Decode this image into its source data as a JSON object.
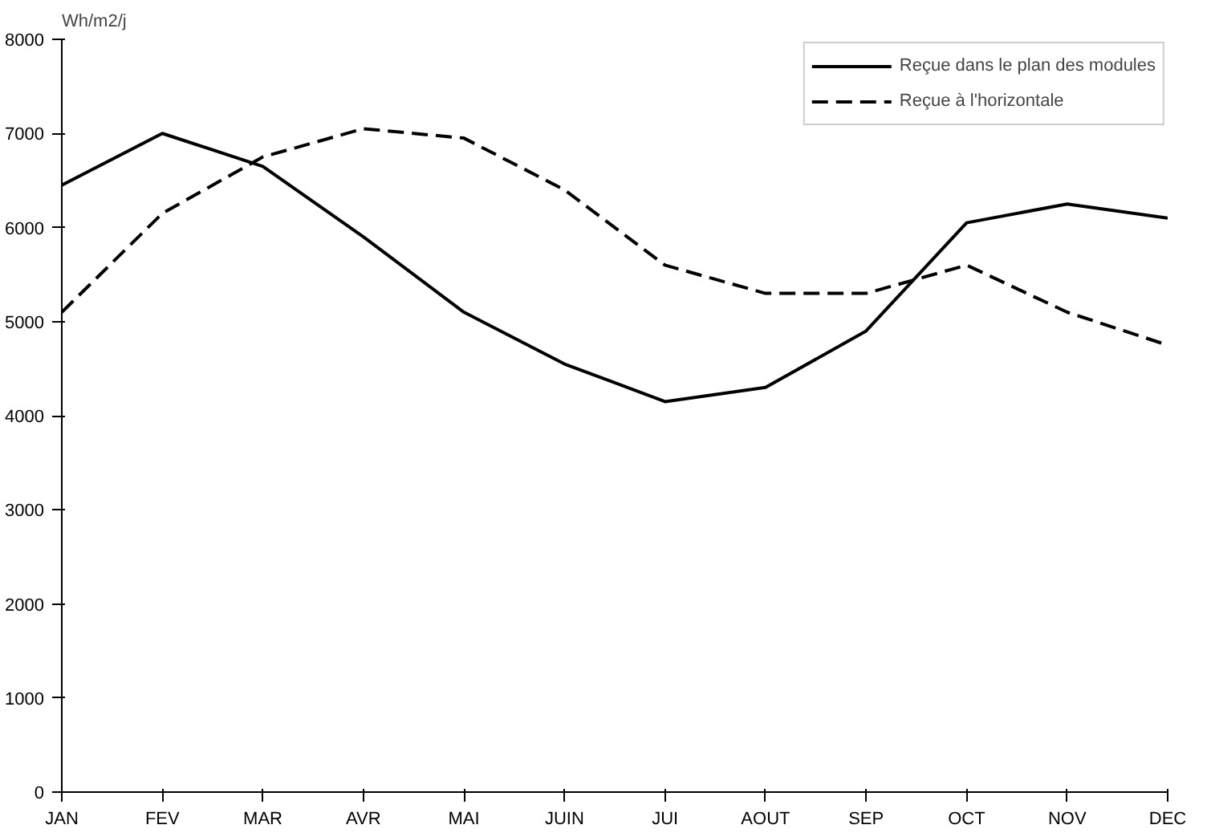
{
  "chart_data": {
    "type": "line",
    "ylabel": "Wh/m2/j",
    "categories": [
      "JAN",
      "FEV",
      "MAR",
      "AVR",
      "MAI",
      "JUIN",
      "JUI",
      "AOUT",
      "SEP",
      "OCT",
      "NOV",
      "DEC"
    ],
    "series": [
      {
        "name": "Reçue dans le plan des modules",
        "color": "#000000",
        "line_style": "solid",
        "values": [
          6450,
          7000,
          6650,
          5900,
          5100,
          4550,
          4150,
          4300,
          4900,
          6050,
          6250,
          6100
        ]
      },
      {
        "name": "Reçue à l'horizontale",
        "color": "#000000",
        "line_style": "dashed",
        "values": [
          5100,
          6150,
          6750,
          7050,
          6950,
          6400,
          5600,
          5300,
          5300,
          5600,
          5100,
          4750
        ]
      }
    ],
    "ylim": [
      0,
      8000
    ],
    "yticks": [
      0,
      1000,
      2000,
      3000,
      4000,
      5000,
      6000,
      7000,
      8000
    ],
    "grid": false,
    "legend": "top right",
    "marker": "none"
  }
}
